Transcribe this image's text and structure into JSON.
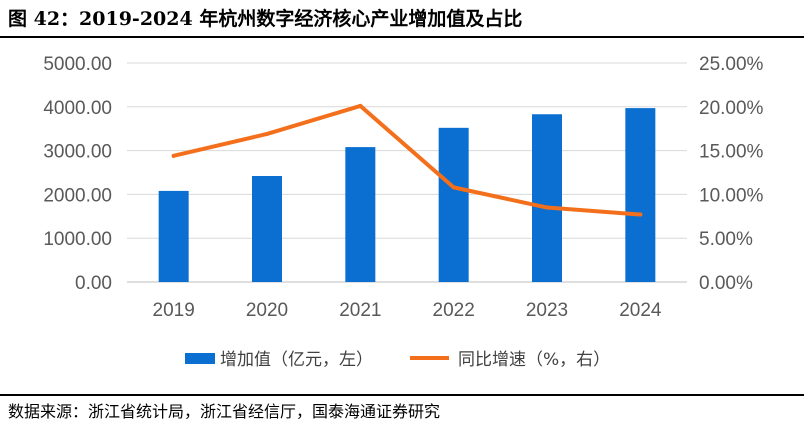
{
  "figure": {
    "title": "图 42：2019-2024 年杭州数字经济核心产业增加值及占比",
    "source": "数据来源：浙江省统计局，浙江省经信厅，国泰海通证券研究"
  },
  "colors": {
    "bar": "#0A6FD0",
    "line": "#F46F1B",
    "grid": "#D9D9D9",
    "axis": "#BFBFBF"
  },
  "chart_data": {
    "type": "bar",
    "categories": [
      "2019",
      "2020",
      "2021",
      "2022",
      "2023",
      "2024"
    ],
    "series": [
      {
        "name": "增加值（亿元，左）",
        "type": "bar",
        "axis": "left",
        "values": [
          2080,
          2420,
          3080,
          3520,
          3830,
          3970
        ]
      },
      {
        "name": "同比增速（%，右）",
        "type": "line",
        "axis": "right",
        "values": [
          14.4,
          16.9,
          20.1,
          10.8,
          8.5,
          7.7
        ]
      }
    ],
    "left_axis": {
      "min": 0,
      "max": 5000,
      "step": 1000,
      "tick_labels": [
        "0.00",
        "1000.00",
        "2000.00",
        "3000.00",
        "4000.00",
        "5000.00"
      ]
    },
    "right_axis": {
      "min": 0,
      "max": 25,
      "step": 5,
      "tick_labels": [
        "0.00%",
        "5.00%",
        "10.00%",
        "15.00%",
        "20.00%",
        "25.00%"
      ]
    },
    "legend_position": "bottom",
    "grid": true
  }
}
